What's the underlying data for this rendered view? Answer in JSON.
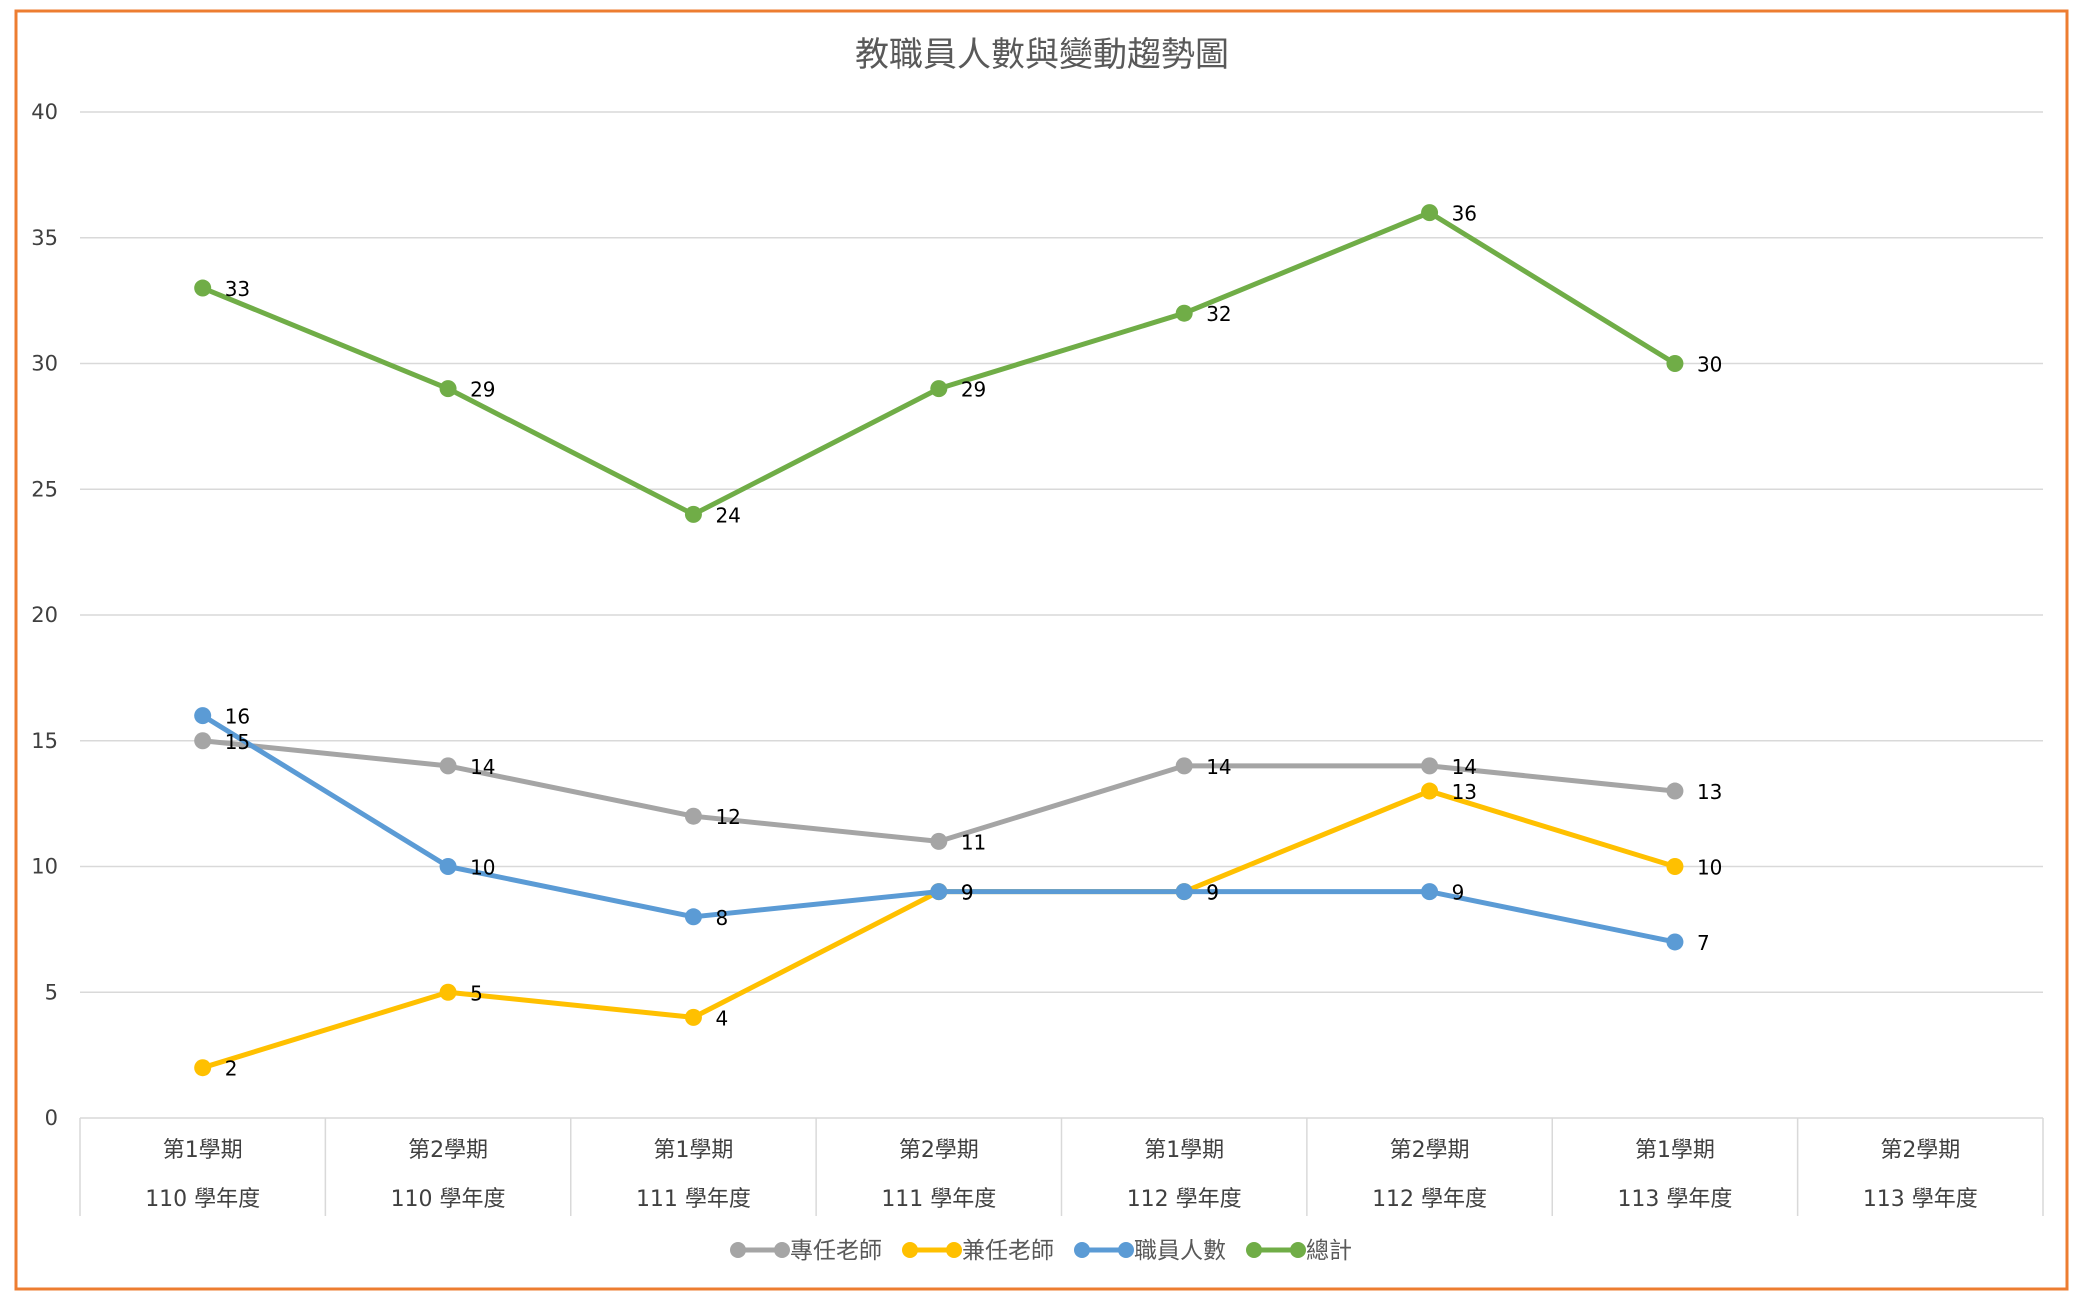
{
  "chart_data": {
    "type": "line",
    "title": "教職員人數與變動趨勢圖",
    "xlabel": "",
    "ylabel": "",
    "ylim": [
      0,
      40
    ],
    "yticks": [
      "0",
      "5",
      "10",
      "15",
      "20",
      "25",
      "30",
      "35",
      "40"
    ],
    "grid": true,
    "legend_position": "bottom",
    "categories": [
      {
        "term": "第1學期",
        "year": "110 學年度"
      },
      {
        "term": "第2學期",
        "year": "110 學年度"
      },
      {
        "term": "第1學期",
        "year": "111 學年度"
      },
      {
        "term": "第2學期",
        "year": "111 學年度"
      },
      {
        "term": "第1學期",
        "year": "112 學年度"
      },
      {
        "term": "第2學期",
        "year": "112 學年度"
      },
      {
        "term": "第1學期",
        "year": "113 學年度"
      },
      {
        "term": "第2學期",
        "year": "113 學年度"
      }
    ],
    "series": [
      {
        "name": "專任老師",
        "color": "#a5a5a5",
        "values": [
          15,
          14,
          12,
          11,
          14,
          14,
          13,
          null
        ]
      },
      {
        "name": "兼任老師",
        "color": "#ffc000",
        "values": [
          2,
          5,
          4,
          9,
          9,
          13,
          10,
          null
        ]
      },
      {
        "name": "職員人數",
        "color": "#5b9bd5",
        "values": [
          16,
          10,
          8,
          9,
          9,
          9,
          7,
          null
        ]
      },
      {
        "name": "總計",
        "color": "#70ad47",
        "values": [
          33,
          29,
          24,
          29,
          32,
          36,
          30,
          null
        ]
      }
    ],
    "frame_color": "#ed7d31"
  }
}
